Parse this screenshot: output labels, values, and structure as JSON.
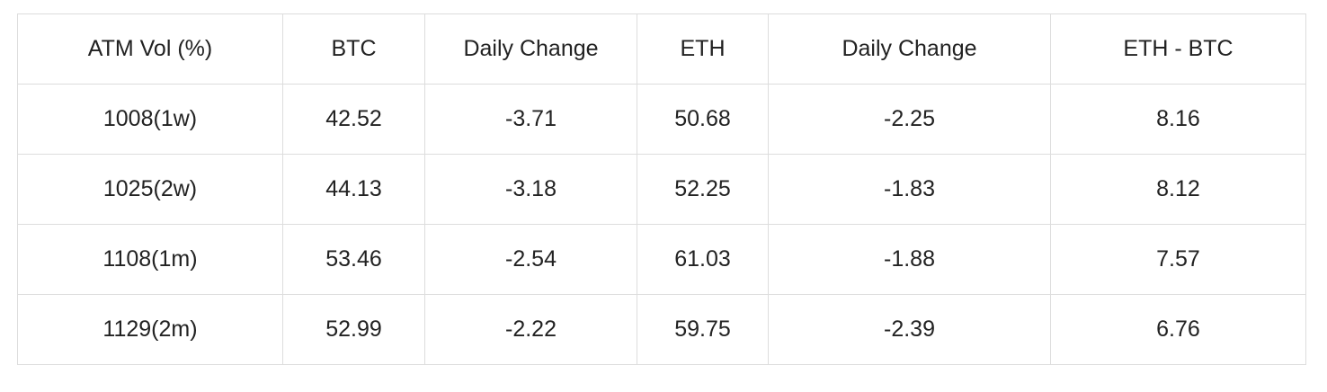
{
  "table": {
    "headers": [
      "ATM Vol (%)",
      "BTC",
      "Daily Change",
      "ETH",
      "Daily Change",
      "ETH - BTC"
    ],
    "rows": [
      [
        "1008(1w)",
        "42.52",
        "-3.71",
        "50.68",
        "-2.25",
        "8.16"
      ],
      [
        "1025(2w)",
        "44.13",
        "-3.18",
        "52.25",
        "-1.83",
        "8.12"
      ],
      [
        "1108(1m)",
        "53.46",
        "-2.54",
        "61.03",
        "-1.88",
        "7.57"
      ],
      [
        "1129(2m)",
        "52.99",
        "-2.22",
        "59.75",
        "-2.39",
        "6.76"
      ]
    ]
  }
}
